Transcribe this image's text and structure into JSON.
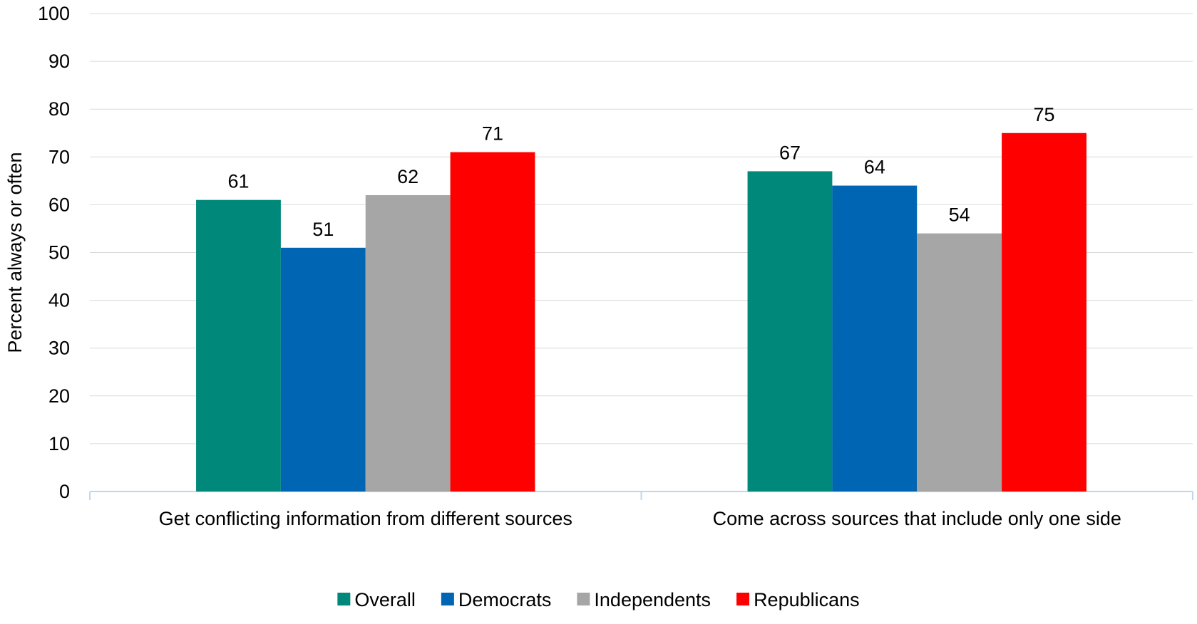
{
  "chart_data": {
    "type": "bar",
    "title": "",
    "xlabel": "",
    "ylabel": "Percent always or often",
    "ylim": [
      0,
      100
    ],
    "yticks": [
      0,
      10,
      20,
      30,
      40,
      50,
      60,
      70,
      80,
      90,
      100
    ],
    "grid": true,
    "legend_position": "bottom",
    "categories": [
      "Get conflicting information from different sources",
      "Come across sources that include only one side"
    ],
    "series": [
      {
        "name": "Overall",
        "color": "#00897B",
        "values": [
          61,
          67
        ]
      },
      {
        "name": "Democrats",
        "color": "#0066B3",
        "values": [
          51,
          64
        ]
      },
      {
        "name": "Independents",
        "color": "#A6A6A6",
        "values": [
          62,
          54
        ]
      },
      {
        "name": "Republicans",
        "color": "#FF0000",
        "values": [
          71,
          75
        ]
      }
    ]
  }
}
